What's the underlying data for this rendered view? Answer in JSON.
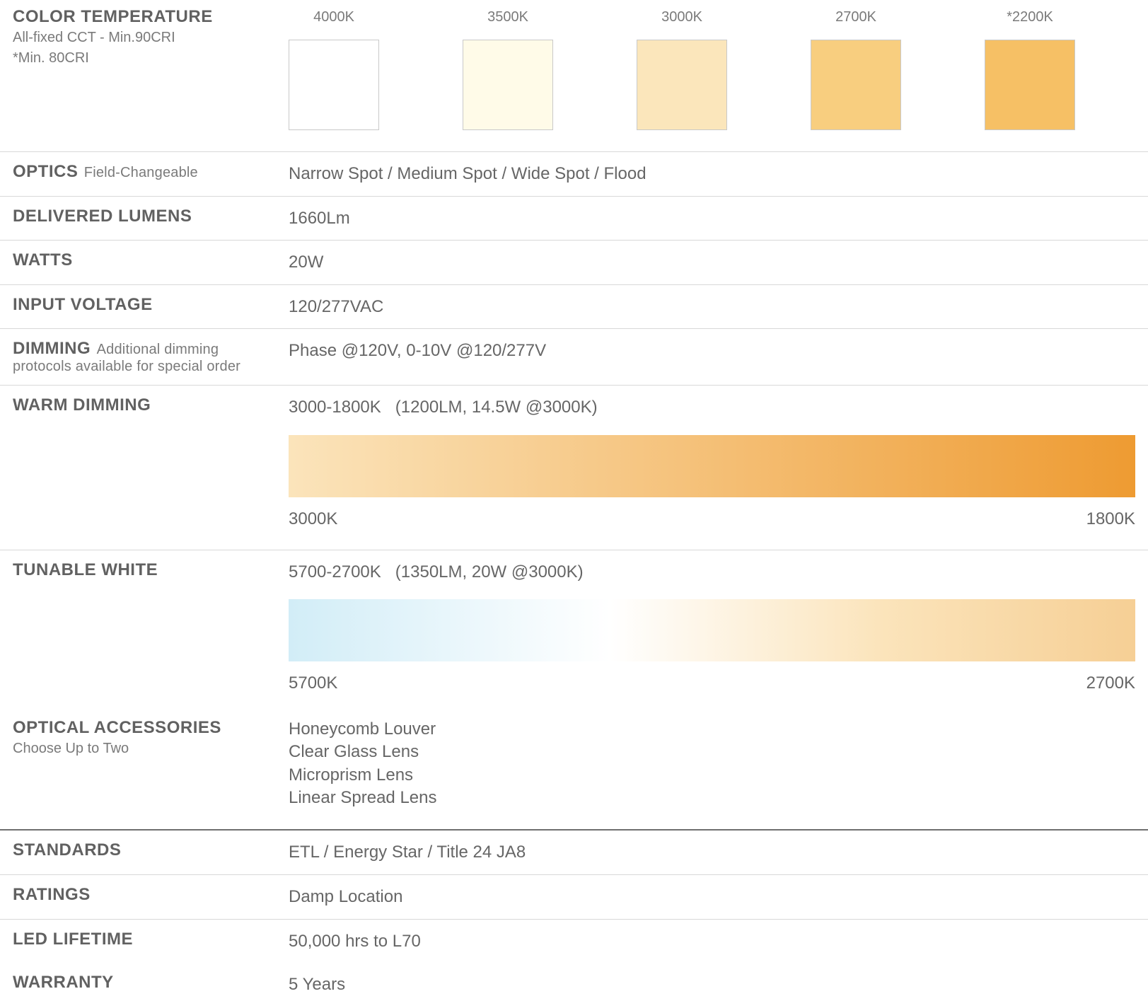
{
  "colorTemp": {
    "title": "COLOR TEMPERATURE",
    "sub1": "All-fixed CCT - Min.90CRI",
    "sub2": "*Min. 80CRI",
    "swatches": [
      {
        "label": "4000K",
        "color": "#ffffff"
      },
      {
        "label": "3500K",
        "color": "#fffbe8"
      },
      {
        "label": "3000K",
        "color": "#fbe6bb"
      },
      {
        "label": "2700K",
        "color": "#f8ce7f"
      },
      {
        "label": "*2200K",
        "color": "#f6c065"
      }
    ],
    "swatch_border": "#c9c9c9"
  },
  "optics": {
    "title": "OPTICS",
    "sub": "Field-Changeable",
    "value": "Narrow Spot / Medium Spot / Wide Spot / Flood"
  },
  "lumens": {
    "title": "DELIVERED LUMENS",
    "value": "1660Lm"
  },
  "watts": {
    "title": "WATTS",
    "value": "20W"
  },
  "voltage": {
    "title": "INPUT VOLTAGE",
    "value": "120/277VAC"
  },
  "dimming": {
    "title": "DIMMING",
    "sub": "Additional dimming protocols available for special order",
    "value": "Phase @120V, 0-10V @120/277V"
  },
  "warmDimming": {
    "title": "WARM DIMMING",
    "value": "3000-1800K   (1200LM, 14.5W @3000K)",
    "gradient_from": "#fbe4bb",
    "gradient_to": "#ee9b32",
    "label_left": "3000K",
    "label_right": "1800K"
  },
  "tunableWhite": {
    "title": "TUNABLE WHITE",
    "value": "5700-2700K   (1350LM, 20W @3000K)",
    "gradient_stops": [
      "#d2edf7",
      "#ffffff",
      "#fbe4bb",
      "#f6cf95"
    ],
    "label_left": "5700K",
    "label_right": "2700K"
  },
  "accessories": {
    "title": "OPTICAL ACCESSORIES",
    "sub": "Choose Up to Two",
    "items": [
      "Honeycomb Louver",
      "Clear Glass Lens",
      "Microprism Lens",
      "Linear Spread Lens"
    ]
  },
  "standards": {
    "title": "STANDARDS",
    "value": "ETL / Energy Star / Title 24 JA8"
  },
  "ratings": {
    "title": "RATINGS",
    "value": "Damp Location"
  },
  "lifetime": {
    "title": "LED LIFETIME",
    "value": "50,000 hrs to L70"
  },
  "warranty": {
    "title": "WARRANTY",
    "value": "5 Years"
  },
  "style": {
    "divider_color": "#d8d8d8",
    "thick_divider_color": "#6f6f6f",
    "title_color": "#616161",
    "text_color": "#666666",
    "sub_color": "#7a7a7a",
    "background": "#ffffff"
  }
}
